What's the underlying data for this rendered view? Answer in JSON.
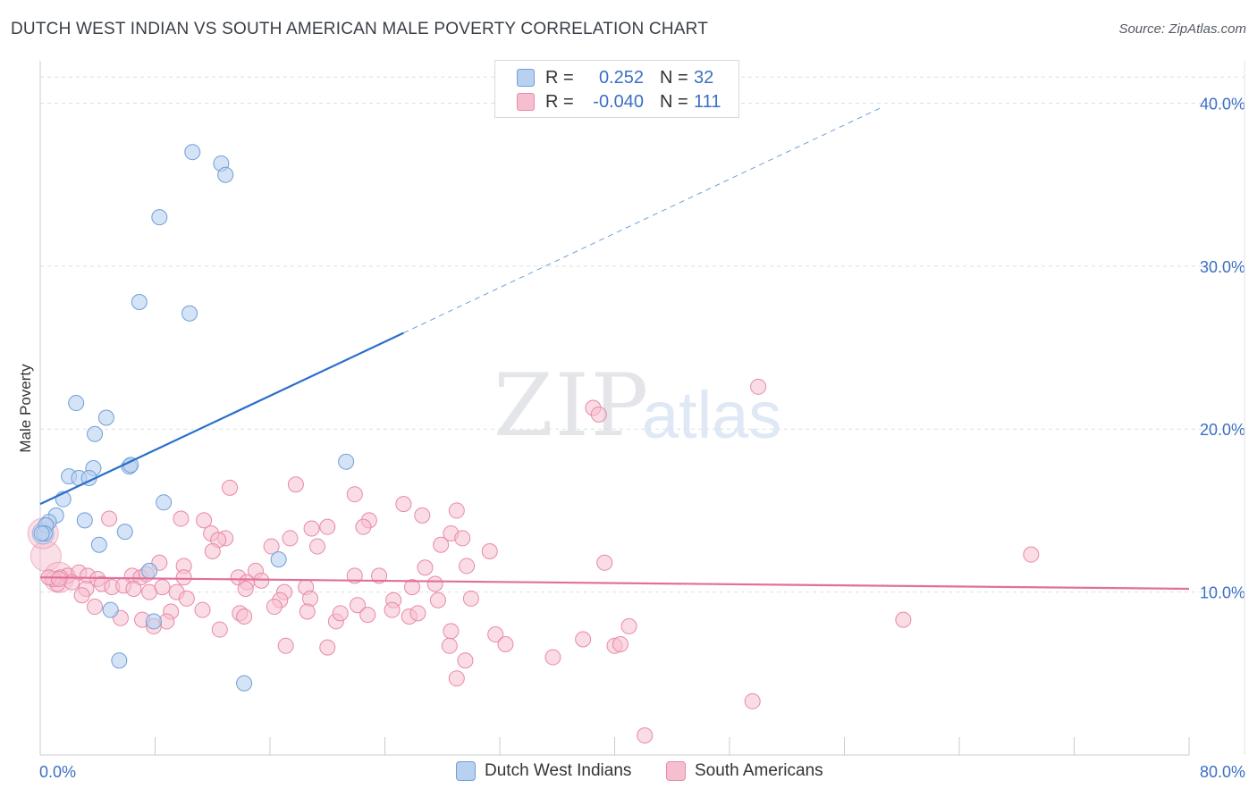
{
  "title": "DUTCH WEST INDIAN VS SOUTH AMERICAN MALE POVERTY CORRELATION CHART",
  "source": "Source: ZipAtlas.com",
  "watermark": {
    "zip": "ZIP",
    "atlas": "atlas"
  },
  "colors": {
    "blue_fill": "#b9d1f0",
    "blue_stroke": "#6e9fd8",
    "blue_line": "#2a6fc9",
    "pink_fill": "#f6bfd0",
    "pink_stroke": "#e889a8",
    "pink_line": "#e0709a",
    "axis_text": "#3b6fc4",
    "grid": "#dcdfe4"
  },
  "legend": {
    "rows": [
      {
        "r_label": "R =",
        "r_value": "0.252",
        "n_label": "N =",
        "n_value": "32"
      },
      {
        "r_label": "R =",
        "r_value": "-0.040",
        "n_label": "N =",
        "n_value": "111"
      }
    ]
  },
  "bottom_legend": {
    "series1": "Dutch West Indians",
    "series2": "South Americans"
  },
  "chart_data": {
    "type": "scatter",
    "title": "DUTCH WEST INDIAN VS SOUTH AMERICAN MALE POVERTY CORRELATION CHART",
    "xlabel": "",
    "ylabel": "Male Poverty",
    "xlim": [
      0,
      80
    ],
    "ylim": [
      0,
      42
    ],
    "x_tick_labels": [
      "0.0%",
      "80.0%"
    ],
    "y_ticks": [
      10,
      20,
      30,
      40
    ],
    "y_tick_labels": [
      "10.0%",
      "20.0%",
      "30.0%",
      "40.0%"
    ],
    "series": [
      {
        "name": "Dutch West Indians",
        "r": 0.252,
        "n": 32,
        "trend": {
          "x0": 0,
          "y0": 15.4,
          "x1": 25.3,
          "y1": 25.9,
          "x_dash_end": 58.5,
          "y_dash_end": 39.7
        },
        "points": [
          [
            10.6,
            37.0
          ],
          [
            12.6,
            36.3
          ],
          [
            12.9,
            35.6
          ],
          [
            8.3,
            33.0
          ],
          [
            6.9,
            27.8
          ],
          [
            10.4,
            27.1
          ],
          [
            2.5,
            21.6
          ],
          [
            4.6,
            20.7
          ],
          [
            3.8,
            19.7
          ],
          [
            21.3,
            18.0
          ],
          [
            3.7,
            17.6
          ],
          [
            6.2,
            17.7
          ],
          [
            6.3,
            17.8
          ],
          [
            2.0,
            17.1
          ],
          [
            2.7,
            17.0
          ],
          [
            3.4,
            17.0
          ],
          [
            1.6,
            15.7
          ],
          [
            8.6,
            15.5
          ],
          [
            1.1,
            14.7
          ],
          [
            0.6,
            14.3
          ],
          [
            0.4,
            14.1
          ],
          [
            3.1,
            14.4
          ],
          [
            0.3,
            13.6
          ],
          [
            5.9,
            13.7
          ],
          [
            4.1,
            12.9
          ],
          [
            16.6,
            12.0
          ],
          [
            7.6,
            11.3
          ],
          [
            4.9,
            8.9
          ],
          [
            7.9,
            8.2
          ],
          [
            5.5,
            5.8
          ],
          [
            14.2,
            4.4
          ],
          [
            0.1,
            13.6
          ]
        ],
        "big_points": [
          [
            0.2,
            13.6
          ]
        ]
      },
      {
        "name": "South Americans",
        "r": -0.04,
        "n": 111,
        "trend": {
          "x0": 0,
          "y0": 10.9,
          "x1": 80,
          "y1": 10.2
        },
        "points": [
          [
            50.0,
            22.6
          ],
          [
            38.5,
            21.3
          ],
          [
            38.9,
            20.9
          ],
          [
            13.2,
            16.4
          ],
          [
            17.8,
            16.6
          ],
          [
            21.9,
            16.0
          ],
          [
            25.3,
            15.4
          ],
          [
            29.0,
            15.0
          ],
          [
            26.6,
            14.7
          ],
          [
            22.9,
            14.4
          ],
          [
            11.4,
            14.4
          ],
          [
            4.8,
            14.5
          ],
          [
            20.0,
            14.0
          ],
          [
            22.5,
            14.0
          ],
          [
            18.9,
            13.9
          ],
          [
            28.6,
            13.6
          ],
          [
            29.4,
            13.3
          ],
          [
            17.4,
            13.3
          ],
          [
            12.9,
            13.3
          ],
          [
            11.9,
            13.6
          ],
          [
            12.4,
            13.2
          ],
          [
            27.9,
            12.9
          ],
          [
            19.3,
            12.8
          ],
          [
            16.1,
            12.8
          ],
          [
            12.0,
            12.5
          ],
          [
            31.3,
            12.5
          ],
          [
            8.3,
            11.8
          ],
          [
            10.0,
            11.6
          ],
          [
            15.0,
            11.3
          ],
          [
            26.8,
            11.5
          ],
          [
            29.7,
            11.6
          ],
          [
            39.3,
            11.8
          ],
          [
            69.0,
            12.3
          ],
          [
            1.9,
            11.0
          ],
          [
            2.7,
            11.2
          ],
          [
            3.3,
            11.0
          ],
          [
            1.4,
            10.9
          ],
          [
            1.2,
            10.5
          ],
          [
            0.9,
            10.8
          ],
          [
            0.6,
            10.9
          ],
          [
            2.2,
            10.6
          ],
          [
            4.0,
            10.8
          ],
          [
            6.4,
            11.0
          ],
          [
            7.0,
            10.9
          ],
          [
            7.4,
            11.1
          ],
          [
            10.0,
            10.9
          ],
          [
            13.8,
            10.9
          ],
          [
            14.4,
            10.6
          ],
          [
            15.4,
            10.7
          ],
          [
            18.5,
            10.3
          ],
          [
            21.9,
            11.0
          ],
          [
            23.6,
            11.0
          ],
          [
            25.9,
            10.3
          ],
          [
            27.5,
            10.5
          ],
          [
            4.3,
            10.5
          ],
          [
            5.0,
            10.3
          ],
          [
            3.2,
            10.2
          ],
          [
            5.8,
            10.4
          ],
          [
            6.5,
            10.2
          ],
          [
            7.6,
            10.0
          ],
          [
            8.5,
            10.3
          ],
          [
            9.5,
            10.0
          ],
          [
            14.3,
            10.2
          ],
          [
            17.0,
            10.0
          ],
          [
            2.9,
            9.8
          ],
          [
            10.2,
            9.6
          ],
          [
            16.7,
            9.5
          ],
          [
            18.8,
            9.6
          ],
          [
            24.6,
            9.5
          ],
          [
            27.7,
            9.5
          ],
          [
            30.0,
            9.6
          ],
          [
            3.8,
            9.1
          ],
          [
            9.1,
            8.8
          ],
          [
            11.3,
            8.9
          ],
          [
            13.9,
            8.7
          ],
          [
            16.3,
            9.1
          ],
          [
            22.1,
            9.2
          ],
          [
            24.5,
            8.9
          ],
          [
            25.7,
            8.5
          ],
          [
            26.3,
            8.7
          ],
          [
            22.8,
            8.6
          ],
          [
            5.6,
            8.4
          ],
          [
            7.1,
            8.3
          ],
          [
            8.8,
            8.2
          ],
          [
            14.2,
            8.5
          ],
          [
            18.6,
            8.8
          ],
          [
            20.6,
            8.2
          ],
          [
            20.9,
            8.7
          ],
          [
            7.9,
            7.9
          ],
          [
            12.5,
            7.7
          ],
          [
            28.6,
            7.6
          ],
          [
            31.7,
            7.4
          ],
          [
            41.0,
            7.9
          ],
          [
            37.8,
            7.1
          ],
          [
            60.1,
            8.3
          ],
          [
            17.1,
            6.7
          ],
          [
            20.0,
            6.6
          ],
          [
            28.5,
            6.7
          ],
          [
            32.4,
            6.8
          ],
          [
            40.0,
            6.7
          ],
          [
            40.4,
            6.8
          ],
          [
            29.6,
            5.8
          ],
          [
            35.7,
            6.0
          ],
          [
            29.0,
            4.7
          ],
          [
            49.6,
            3.3
          ],
          [
            42.1,
            1.2
          ],
          [
            9.8,
            14.5
          ],
          [
            1.3,
            10.8
          ]
        ],
        "big_points": [
          [
            0.4,
            12.2
          ],
          [
            0.2,
            13.6
          ],
          [
            1.3,
            10.9
          ]
        ]
      }
    ]
  }
}
